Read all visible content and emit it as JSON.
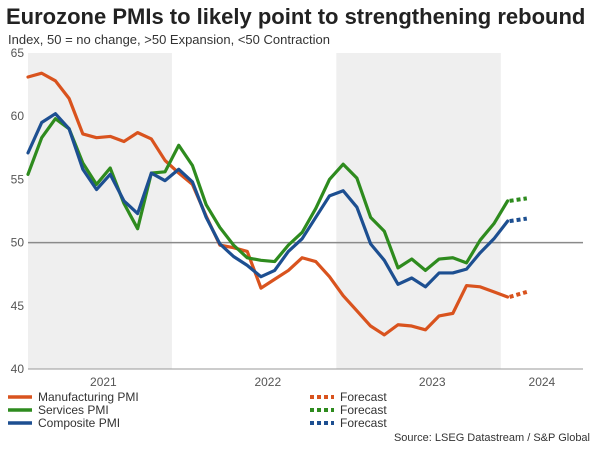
{
  "title": "Eurozone PMIs to likely point to strengthening rebound",
  "subtitle": "Index, 50 = no change, >50 Expansion, <50 Contraction",
  "source": "Source: LSEG Datastream / S&P Global",
  "colors": {
    "manufacturing": "#d9531e",
    "services": "#2e8b1e",
    "composite": "#1d4f91",
    "shade": "#efefef",
    "reference": "#8a8a8a"
  },
  "chart_data": {
    "type": "line",
    "ylim": [
      40,
      65
    ],
    "yticks": [
      40,
      45,
      50,
      55,
      60,
      65
    ],
    "xlim": [
      0,
      40.5
    ],
    "year_labels": [
      {
        "label": "2021",
        "x": 5.5
      },
      {
        "label": "2022",
        "x": 17.5
      },
      {
        "label": "2023",
        "x": 29.5
      },
      {
        "label": "2024",
        "x": 37.5
      }
    ],
    "shaded_years": [
      [
        0,
        10.5
      ],
      [
        22.5,
        34.5
      ]
    ],
    "reference_line": 50,
    "series": [
      {
        "name": "Manufacturing PMI",
        "color_key": "manufacturing",
        "values": [
          63.1,
          63.4,
          62.8,
          61.4,
          58.6,
          58.3,
          58.4,
          58.0,
          58.7,
          58.2,
          56.5,
          55.5,
          54.6,
          52.1,
          49.8,
          49.6,
          49.3,
          46.4,
          47.1,
          47.8,
          48.8,
          48.5,
          47.3,
          45.8,
          44.6,
          43.4,
          42.7,
          43.5,
          43.4,
          43.1,
          44.2,
          44.4,
          46.6,
          46.5,
          46.1,
          45.7
        ]
      },
      {
        "name": "Services PMI",
        "color_key": "services",
        "values": [
          55.4,
          58.3,
          59.8,
          59.0,
          56.3,
          54.6,
          55.9,
          53.1,
          51.1,
          55.5,
          55.6,
          57.7,
          56.1,
          53.0,
          51.2,
          49.8,
          48.8,
          48.6,
          48.5,
          49.8,
          50.8,
          52.7,
          55.0,
          56.2,
          55.1,
          52.0,
          50.9,
          48.0,
          48.7,
          47.8,
          48.7,
          48.8,
          48.4,
          50.2,
          51.5,
          53.3
        ]
      },
      {
        "name": "Composite PMI",
        "color_key": "composite",
        "values": [
          57.1,
          59.5,
          60.2,
          59.0,
          55.8,
          54.2,
          55.4,
          53.3,
          52.3,
          55.5,
          54.9,
          55.8,
          54.8,
          52.0,
          49.9,
          48.9,
          48.2,
          47.3,
          47.8,
          49.3,
          50.3,
          52.0,
          53.7,
          54.1,
          52.8,
          49.9,
          48.6,
          46.7,
          47.2,
          46.5,
          47.6,
          47.6,
          47.9,
          49.2,
          50.3,
          51.7
        ]
      }
    ],
    "forecast": [
      {
        "name": "Forecast",
        "color_key": "manufacturing",
        "values": [
          45.7,
          46.1
        ]
      },
      {
        "name": "Forecast",
        "color_key": "services",
        "values": [
          53.3,
          53.5
        ]
      },
      {
        "name": "Forecast",
        "color_key": "composite",
        "values": [
          51.7,
          51.9
        ]
      }
    ],
    "forecast_x": [
      35,
      36.4
    ]
  }
}
